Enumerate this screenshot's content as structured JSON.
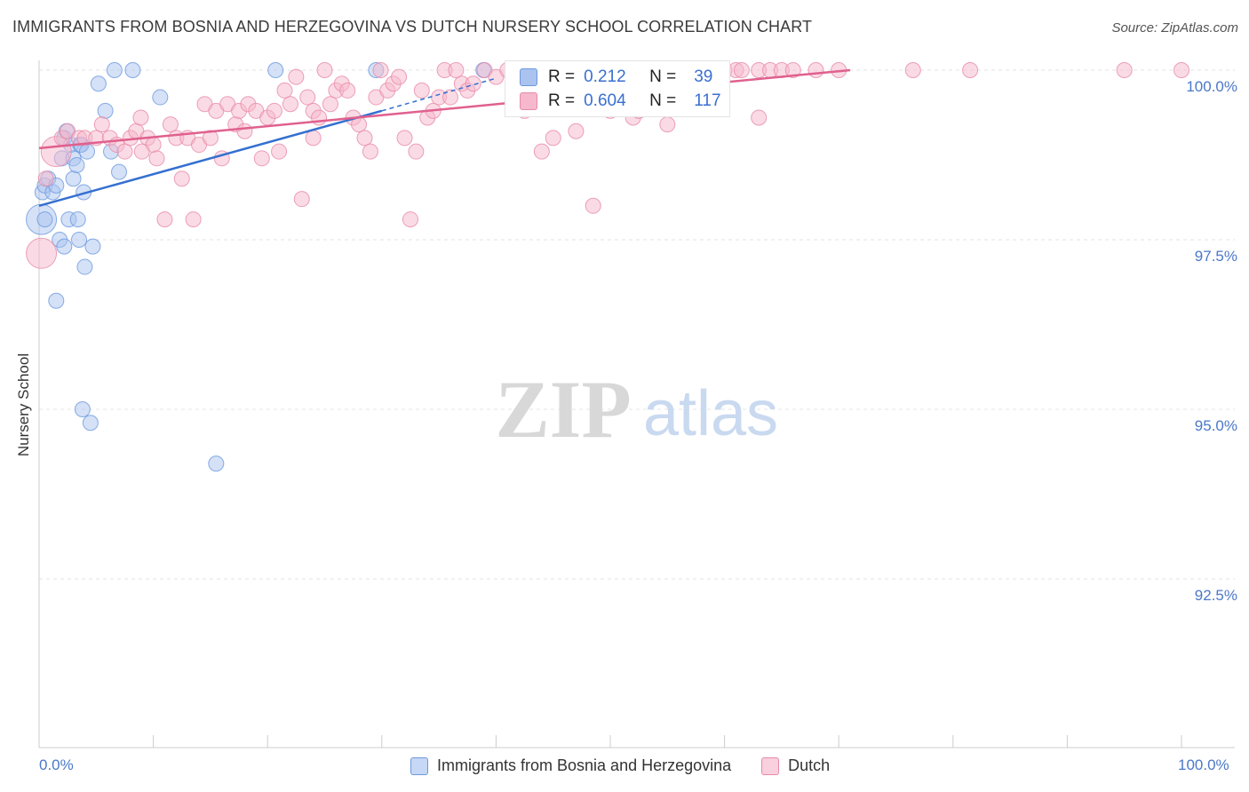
{
  "title": "IMMIGRANTS FROM BOSNIA AND HERZEGOVINA VS DUTCH NURSERY SCHOOL CORRELATION CHART",
  "source": "Source: ZipAtlas.com",
  "watermark": {
    "zip": "ZIP",
    "atlas": "atlas"
  },
  "colors": {
    "blue_fill": "#aac4ef",
    "blue_stroke": "#6d98df",
    "blue_line": "#3470d0",
    "pink_fill": "#f5b8cc",
    "pink_stroke": "#e88aa8",
    "pink_line": "#e0608e",
    "axis_text": "#4a78c8",
    "grid": "#e3e3e3"
  },
  "stats": [
    {
      "series": "Immigrants from Bosnia and Herzegovina",
      "r_label": "R =",
      "r_value": "0.212",
      "n_label": "N =",
      "n_value": "39"
    },
    {
      "series": "Dutch",
      "r_label": "R =",
      "r_value": "0.604",
      "n_label": "N =",
      "n_value": "117"
    }
  ],
  "chart_data": {
    "type": "scatter",
    "title": "IMMIGRANTS FROM BOSNIA AND HERZEGOVINA VS DUTCH NURSERY SCHOOL CORRELATION CHART",
    "xlabel": "",
    "ylabel": "Nursery School",
    "xlim": [
      0,
      100
    ],
    "ylim": [
      90.0,
      100.3
    ],
    "x_tick_labels": [
      "0.0%",
      "100.0%"
    ],
    "y_ticks": [
      92.5,
      95.0,
      97.5,
      100.0
    ],
    "y_tick_labels": [
      "92.5%",
      "95.0%",
      "97.5%",
      "100.0%"
    ],
    "grid": true,
    "legend_position": "bottom-center",
    "series": [
      {
        "name": "Immigrants from Bosnia and Herzegovina",
        "color": "blue",
        "trend": {
          "x": [
            0,
            30
          ],
          "y": [
            98.0,
            99.4
          ]
        },
        "trend_dashed": {
          "x": [
            30,
            40
          ],
          "y": [
            99.4,
            99.88
          ]
        },
        "points": [
          {
            "x": 0.2,
            "y": 97.8,
            "big": true
          },
          {
            "x": 0.3,
            "y": 98.2
          },
          {
            "x": 0.5,
            "y": 98.3
          },
          {
            "x": 0.5,
            "y": 97.8
          },
          {
            "x": 0.8,
            "y": 98.4
          },
          {
            "x": 1.2,
            "y": 98.2
          },
          {
            "x": 1.5,
            "y": 98.3
          },
          {
            "x": 1.5,
            "y": 96.6
          },
          {
            "x": 1.8,
            "y": 97.5
          },
          {
            "x": 2.0,
            "y": 98.7
          },
          {
            "x": 2.2,
            "y": 99.0
          },
          {
            "x": 2.2,
            "y": 97.4
          },
          {
            "x": 2.4,
            "y": 99.1
          },
          {
            "x": 2.6,
            "y": 97.8
          },
          {
            "x": 2.8,
            "y": 98.9
          },
          {
            "x": 3.0,
            "y": 98.7
          },
          {
            "x": 3.0,
            "y": 98.4
          },
          {
            "x": 3.3,
            "y": 98.6
          },
          {
            "x": 3.4,
            "y": 97.8
          },
          {
            "x": 3.5,
            "y": 97.5
          },
          {
            "x": 3.6,
            "y": 98.9
          },
          {
            "x": 3.7,
            "y": 98.9
          },
          {
            "x": 3.8,
            "y": 95.0
          },
          {
            "x": 3.9,
            "y": 98.2
          },
          {
            "x": 4.0,
            "y": 97.1
          },
          {
            "x": 4.2,
            "y": 98.8
          },
          {
            "x": 4.5,
            "y": 94.8
          },
          {
            "x": 4.7,
            "y": 97.4
          },
          {
            "x": 5.2,
            "y": 99.8
          },
          {
            "x": 5.8,
            "y": 99.4
          },
          {
            "x": 6.3,
            "y": 98.8
          },
          {
            "x": 6.6,
            "y": 100.0
          },
          {
            "x": 7.0,
            "y": 98.5
          },
          {
            "x": 8.2,
            "y": 100.0
          },
          {
            "x": 10.6,
            "y": 99.6
          },
          {
            "x": 15.5,
            "y": 94.2
          },
          {
            "x": 20.7,
            "y": 100.0
          },
          {
            "x": 29.5,
            "y": 100.0
          },
          {
            "x": 38.9,
            "y": 100.0
          }
        ]
      },
      {
        "name": "Dutch",
        "color": "pink",
        "trend": {
          "x": [
            0,
            71
          ],
          "y": [
            98.85,
            100.0
          ]
        },
        "points": [
          {
            "x": 0.2,
            "y": 97.3,
            "big": true
          },
          {
            "x": 1.5,
            "y": 98.8,
            "big": true
          },
          {
            "x": 0.6,
            "y": 98.4
          },
          {
            "x": 2.0,
            "y": 99.0
          },
          {
            "x": 2.5,
            "y": 99.1
          },
          {
            "x": 3.5,
            "y": 99.0
          },
          {
            "x": 4.0,
            "y": 99.0
          },
          {
            "x": 5.0,
            "y": 99.0
          },
          {
            "x": 5.5,
            "y": 99.2
          },
          {
            "x": 6.2,
            "y": 99.0
          },
          {
            "x": 6.8,
            "y": 98.9
          },
          {
            "x": 7.5,
            "y": 98.8
          },
          {
            "x": 8.0,
            "y": 99.0
          },
          {
            "x": 8.5,
            "y": 99.1
          },
          {
            "x": 8.9,
            "y": 99.3
          },
          {
            "x": 9.5,
            "y": 99.0
          },
          {
            "x": 10.0,
            "y": 98.9
          },
          {
            "x": 10.3,
            "y": 98.7
          },
          {
            "x": 11.0,
            "y": 97.8
          },
          {
            "x": 11.5,
            "y": 99.2
          },
          {
            "x": 12.0,
            "y": 99.0
          },
          {
            "x": 12.5,
            "y": 98.4
          },
          {
            "x": 13.0,
            "y": 99.0
          },
          {
            "x": 13.5,
            "y": 97.8
          },
          {
            "x": 14.0,
            "y": 98.9
          },
          {
            "x": 14.5,
            "y": 99.5
          },
          {
            "x": 15.0,
            "y": 99.0
          },
          {
            "x": 15.5,
            "y": 99.4
          },
          {
            "x": 16.0,
            "y": 98.7
          },
          {
            "x": 16.5,
            "y": 99.5
          },
          {
            "x": 17.2,
            "y": 99.2
          },
          {
            "x": 17.5,
            "y": 99.4
          },
          {
            "x": 18.0,
            "y": 99.1
          },
          {
            "x": 18.3,
            "y": 99.5
          },
          {
            "x": 19.0,
            "y": 99.4
          },
          {
            "x": 19.5,
            "y": 98.7
          },
          {
            "x": 20.0,
            "y": 99.3
          },
          {
            "x": 20.6,
            "y": 99.4
          },
          {
            "x": 21.0,
            "y": 98.8
          },
          {
            "x": 21.5,
            "y": 99.7
          },
          {
            "x": 22.0,
            "y": 99.5
          },
          {
            "x": 22.5,
            "y": 99.9
          },
          {
            "x": 23.0,
            "y": 98.1
          },
          {
            "x": 23.5,
            "y": 99.6
          },
          {
            "x": 24.0,
            "y": 99.4
          },
          {
            "x": 24.5,
            "y": 99.3
          },
          {
            "x": 25.0,
            "y": 100.0
          },
          {
            "x": 25.5,
            "y": 99.5
          },
          {
            "x": 26.0,
            "y": 99.7
          },
          {
            "x": 26.5,
            "y": 99.8
          },
          {
            "x": 27.0,
            "y": 99.7
          },
          {
            "x": 27.5,
            "y": 99.3
          },
          {
            "x": 28.0,
            "y": 99.2
          },
          {
            "x": 28.5,
            "y": 99.0
          },
          {
            "x": 29.0,
            "y": 98.8
          },
          {
            "x": 29.5,
            "y": 99.6
          },
          {
            "x": 29.9,
            "y": 100.0
          },
          {
            "x": 30.5,
            "y": 99.7
          },
          {
            "x": 31.0,
            "y": 99.8
          },
          {
            "x": 31.5,
            "y": 99.9
          },
          {
            "x": 32.0,
            "y": 99.0
          },
          {
            "x": 32.5,
            "y": 97.8
          },
          {
            "x": 33.0,
            "y": 98.8
          },
          {
            "x": 33.5,
            "y": 99.7
          },
          {
            "x": 34.0,
            "y": 99.3
          },
          {
            "x": 34.5,
            "y": 99.4
          },
          {
            "x": 35.0,
            "y": 99.6
          },
          {
            "x": 35.5,
            "y": 100.0
          },
          {
            "x": 36.0,
            "y": 99.6
          },
          {
            "x": 36.5,
            "y": 100.0
          },
          {
            "x": 37.0,
            "y": 99.8
          },
          {
            "x": 37.5,
            "y": 99.7
          },
          {
            "x": 38.0,
            "y": 99.8
          },
          {
            "x": 39.0,
            "y": 100.0
          },
          {
            "x": 40.0,
            "y": 99.9
          },
          {
            "x": 41.0,
            "y": 100.0
          },
          {
            "x": 42.0,
            "y": 99.6
          },
          {
            "x": 42.5,
            "y": 99.4
          },
          {
            "x": 43.0,
            "y": 100.0
          },
          {
            "x": 44.0,
            "y": 98.8
          },
          {
            "x": 44.5,
            "y": 100.0
          },
          {
            "x": 45.0,
            "y": 99.0
          },
          {
            "x": 46.0,
            "y": 100.0
          },
          {
            "x": 47.0,
            "y": 99.1
          },
          {
            "x": 47.5,
            "y": 100.0
          },
          {
            "x": 48.0,
            "y": 99.8
          },
          {
            "x": 48.5,
            "y": 98.0
          },
          {
            "x": 49.0,
            "y": 100.0
          },
          {
            "x": 50.0,
            "y": 99.4
          },
          {
            "x": 51.0,
            "y": 100.0
          },
          {
            "x": 52.0,
            "y": 99.3
          },
          {
            "x": 52.5,
            "y": 99.4
          },
          {
            "x": 53.0,
            "y": 100.0
          },
          {
            "x": 54.0,
            "y": 100.0
          },
          {
            "x": 55.0,
            "y": 99.2
          },
          {
            "x": 55.5,
            "y": 100.0
          },
          {
            "x": 56.0,
            "y": 99.6
          },
          {
            "x": 57.0,
            "y": 100.0
          },
          {
            "x": 58.0,
            "y": 100.0
          },
          {
            "x": 59.0,
            "y": 100.0
          },
          {
            "x": 60.0,
            "y": 100.0
          },
          {
            "x": 61.0,
            "y": 100.0
          },
          {
            "x": 61.5,
            "y": 100.0
          },
          {
            "x": 63.0,
            "y": 100.0
          },
          {
            "x": 64.0,
            "y": 100.0
          },
          {
            "x": 65.0,
            "y": 100.0
          },
          {
            "x": 66.0,
            "y": 100.0
          },
          {
            "x": 68.0,
            "y": 100.0
          },
          {
            "x": 70.0,
            "y": 100.0
          },
          {
            "x": 76.5,
            "y": 100.0
          },
          {
            "x": 81.5,
            "y": 100.0
          },
          {
            "x": 95.0,
            "y": 100.0
          },
          {
            "x": 100.0,
            "y": 100.0
          },
          {
            "x": 63.0,
            "y": 99.3
          },
          {
            "x": 53.5,
            "y": 99.6
          },
          {
            "x": 24.0,
            "y": 99.0
          },
          {
            "x": 9.0,
            "y": 98.8
          }
        ]
      }
    ]
  }
}
